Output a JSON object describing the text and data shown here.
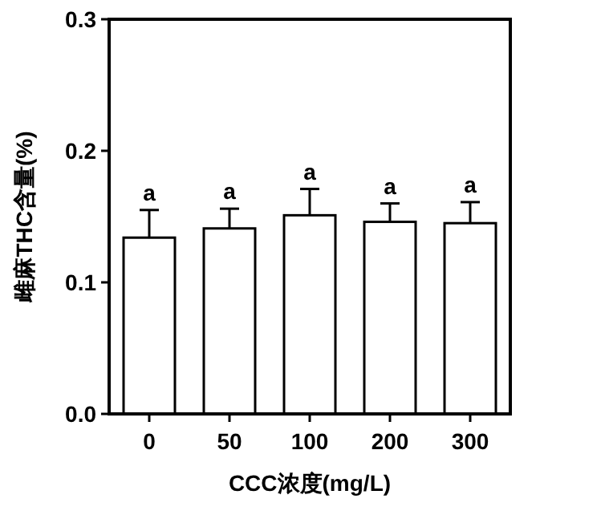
{
  "chart_data": {
    "type": "bar",
    "xlabel": "CCC浓度(mg/L)",
    "ylabel": "雌麻THC含量(%)",
    "categories": [
      "0",
      "50",
      "100",
      "200",
      "300"
    ],
    "values": [
      0.134,
      0.141,
      0.151,
      0.146,
      0.145
    ],
    "errors": [
      0.021,
      0.015,
      0.02,
      0.014,
      0.016
    ],
    "color": "#ffffff",
    "ylim": [
      0,
      0.3
    ],
    "yticks": [
      {
        "value": 0,
        "label": "0.0"
      },
      0.1,
      0.2,
      0.3
    ],
    "annotations": [
      {
        "text": "a",
        "x": "0",
        "y": 0.155
      },
      {
        "text": "a",
        "x": "50",
        "y": 0.156
      },
      {
        "text": "a",
        "x": "100",
        "y": 0.171
      },
      {
        "text": "a",
        "x": "200",
        "y": 0.16
      },
      {
        "text": "a",
        "x": "300",
        "y": 0.161
      }
    ],
    "grid": false
  }
}
